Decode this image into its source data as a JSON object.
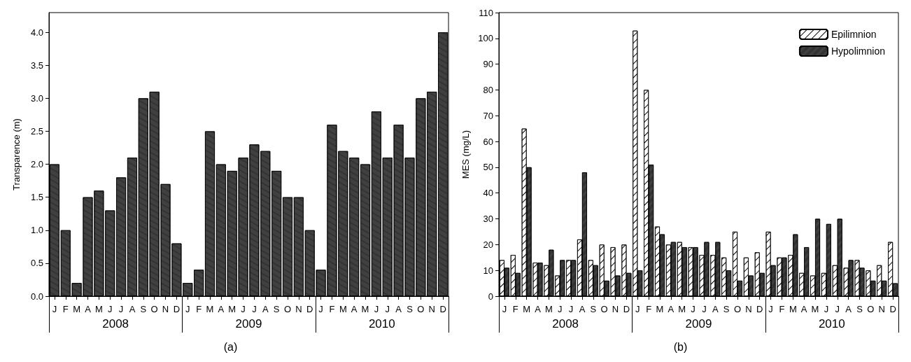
{
  "chart_data": [
    {
      "type": "bar",
      "title": "(a)",
      "ylabel": "Transparence (m)",
      "categories": [
        "J",
        "F",
        "M",
        "A",
        "M",
        "J",
        "J",
        "A",
        "S",
        "O",
        "N",
        "D",
        "J",
        "F",
        "M",
        "A",
        "M",
        "J",
        "J",
        "A",
        "S",
        "O",
        "N",
        "D",
        "J",
        "F",
        "M",
        "A",
        "M",
        "J",
        "J",
        "A",
        "S",
        "O",
        "N",
        "D"
      ],
      "annotations": [
        "2008",
        "2009",
        "2010"
      ],
      "series": [
        {
          "color": "#404040",
          "values": [
            2.0,
            1.0,
            0.2,
            1.5,
            1.6,
            1.3,
            1.8,
            2.1,
            3.0,
            3.1,
            1.7,
            0.8,
            0.2,
            0.4,
            2.5,
            2.0,
            1.9,
            2.1,
            2.3,
            2.2,
            1.9,
            1.5,
            1.5,
            1.0,
            0.4,
            2.6,
            2.2,
            2.1,
            2.0,
            2.8,
            2.1,
            2.6,
            2.1,
            3.0,
            3.1,
            4.0
          ]
        }
      ],
      "ylim": [
        0,
        4.3
      ],
      "yticks": [
        {
          "value": 0,
          "label": "0.0"
        },
        {
          "value": 0.5,
          "label": "0.5"
        },
        {
          "value": 1,
          "label": "1.0"
        },
        {
          "value": 1.5,
          "label": "1.5"
        },
        {
          "value": 2,
          "label": "2.0"
        },
        {
          "value": 2.5,
          "label": "2.5"
        },
        {
          "value": 3,
          "label": "3.0"
        },
        {
          "value": 3.5,
          "label": "3.5"
        },
        {
          "value": 4,
          "label": "4.0"
        }
      ],
      "grid": false,
      "legend": false
    },
    {
      "type": "bar",
      "title": "(b)",
      "ylabel": "MES (mg/L)",
      "categories": [
        "J",
        "F",
        "M",
        "A",
        "M",
        "J",
        "J",
        "A",
        "S",
        "O",
        "N",
        "D",
        "J",
        "F",
        "M",
        "A",
        "M",
        "J",
        "J",
        "A",
        "S",
        "O",
        "N",
        "D",
        "J",
        "F",
        "M",
        "A",
        "M",
        "J",
        "J",
        "A",
        "S",
        "O",
        "N",
        "D"
      ],
      "annotations": [
        "2008",
        "2009",
        "2010"
      ],
      "series": [
        {
          "name": "Epilimnion",
          "color": "#ffffff",
          "values": [
            14,
            16,
            65,
            13,
            12,
            8,
            14,
            22,
            14,
            20,
            19,
            20,
            103,
            80,
            27,
            20,
            21,
            19,
            16,
            16,
            15,
            25,
            15,
            17,
            25,
            15,
            16,
            9,
            8,
            9,
            12,
            11,
            14,
            10,
            12,
            21
          ]
        },
        {
          "name": "Hypolimnion",
          "color": "#404040",
          "values": [
            11,
            9,
            50,
            13,
            18,
            14,
            14,
            48,
            12,
            6,
            8,
            9,
            10,
            51,
            24,
            21,
            19,
            19,
            21,
            21,
            10,
            6,
            8,
            9,
            12,
            15,
            24,
            19,
            30,
            28,
            30,
            14,
            11,
            6,
            6,
            5
          ]
        }
      ],
      "ylim": [
        0,
        110
      ],
      "yticks": [
        0,
        10,
        20,
        30,
        40,
        50,
        60,
        70,
        80,
        90,
        100,
        110
      ],
      "grid": false,
      "legend": "top right"
    }
  ]
}
